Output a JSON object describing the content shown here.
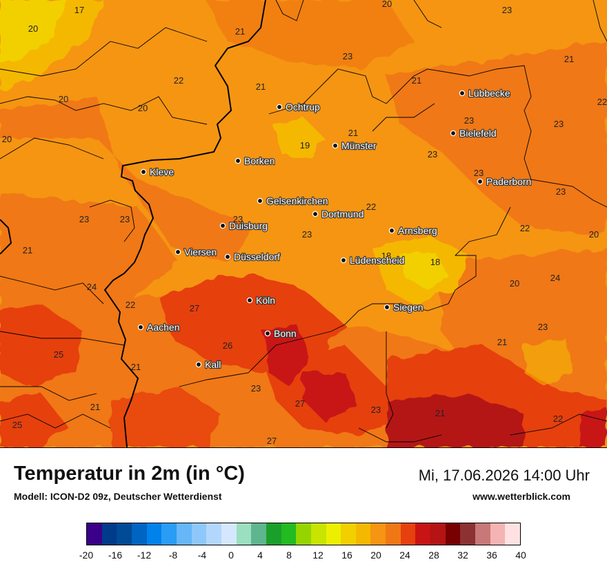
{
  "title": "Temperatur in 2m (in °C)",
  "model": "Modell: ICON-D2 09z, Deutscher Wetterdienst",
  "datetime": "Mi, 17.06.2026 14:00 Uhr",
  "website": "www.wetterblick.com",
  "cities": [
    {
      "name": "Lübbecke"
    },
    {
      "name": "Ochtrup"
    },
    {
      "name": "Bielefeld"
    },
    {
      "name": "Münster"
    },
    {
      "name": "Borken"
    },
    {
      "name": "Kleve"
    },
    {
      "name": "Paderborn"
    },
    {
      "name": "Gelsenkirchen"
    },
    {
      "name": "Dortmund"
    },
    {
      "name": "Duisburg"
    },
    {
      "name": "Arnsberg"
    },
    {
      "name": "Viersen"
    },
    {
      "name": "Düsseldorf"
    },
    {
      "name": "Lüdenscheid"
    },
    {
      "name": "Köln"
    },
    {
      "name": "Siegen"
    },
    {
      "name": "Aachen"
    },
    {
      "name": "Bonn"
    },
    {
      "name": "Kall"
    }
  ],
  "temperature_labels": [
    "17",
    "20",
    "21",
    "20",
    "23",
    "23",
    "21",
    "22",
    "21",
    "21",
    "20",
    "20",
    "19",
    "21",
    "22",
    "23",
    "23",
    "23",
    "23",
    "23",
    "23",
    "23",
    "22",
    "20",
    "21",
    "18",
    "18",
    "23",
    "20",
    "24",
    "24",
    "22",
    "27",
    "25",
    "26",
    "21",
    "23",
    "27",
    "23",
    "21",
    "22",
    "21",
    "25",
    "27",
    "20",
    "23",
    "23",
    "22",
    "21"
  ],
  "legend": {
    "colors": [
      "#3a0087",
      "#003a8a",
      "#004a96",
      "#0064c3",
      "#0082eb",
      "#2a9cf5",
      "#66b6f8",
      "#8ec8fb",
      "#b3d7fc",
      "#d4e7fd",
      "#9adfbf",
      "#5fb58e",
      "#1aa02a",
      "#22bb22",
      "#96d400",
      "#c8e400",
      "#ecf000",
      "#f2d000",
      "#f5b800",
      "#f59512",
      "#f07814",
      "#e6400f",
      "#c81414",
      "#b41414",
      "#780000",
      "#8c3232",
      "#c87878",
      "#f5b4b4",
      "#ffe1e1"
    ],
    "ticks": [
      "-20",
      "-16",
      "-12",
      "-8",
      "-4",
      "0",
      "4",
      "8",
      "12",
      "16",
      "20",
      "24",
      "28",
      "32",
      "36",
      "40"
    ]
  }
}
